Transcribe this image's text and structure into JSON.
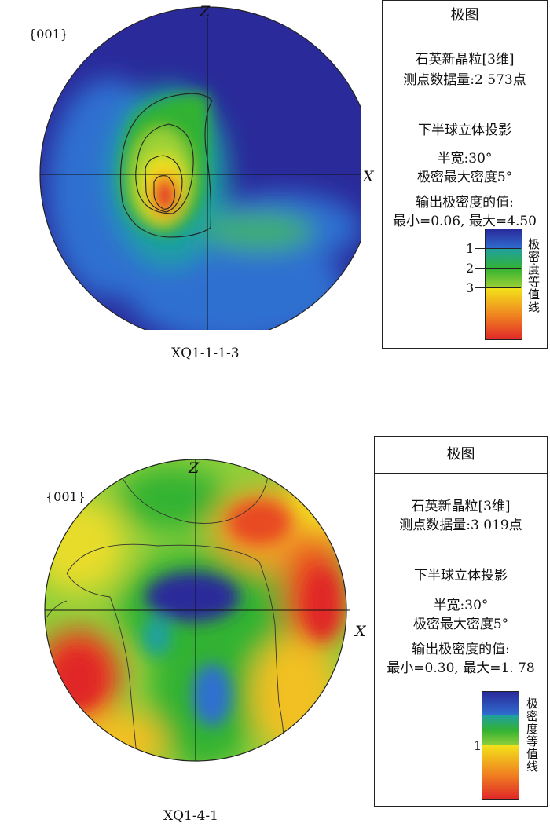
{
  "figures": [
    {
      "plane_label": "{001}",
      "axis_z": "Z",
      "axis_x": "X",
      "sample_label": "XQ1-1-1-3",
      "panel": {
        "title": "极图",
        "mineral": "石英新晶粒[3维]",
        "points": "测点数据量:2 573点",
        "projection": "下半球立体投影",
        "half_width": "半宽:30°",
        "pole_density": "极密最大密度5°",
        "output": "输出极密度的值:",
        "minmax": "最小=0.06, 最大=4.50",
        "colorbar_title": "极密度等值线",
        "colorbar_ticks": [
          "1",
          "2",
          "3"
        ]
      }
    },
    {
      "plane_label": "{001}",
      "axis_z": "Z",
      "axis_x": "X",
      "sample_label": "XQ1-4-1",
      "panel": {
        "title": "极图",
        "mineral": "石英新晶粒[3维]",
        "points": "测点数据量:3 019点",
        "projection": "下半球立体投影",
        "half_width": "半宽:30°",
        "pole_density": "极密最大密度5°",
        "output": "输出极密度的值:",
        "minmax": "最小=0.30, 最大=1. 78",
        "colorbar_title": "极密度等值线",
        "colorbar_ticks": [
          "1"
        ]
      }
    }
  ],
  "colors": {
    "blue": "#2a2a9a",
    "mid_blue": "#2f6fd0",
    "teal": "#1fa0a0",
    "green": "#33b233",
    "yellow": "#f2e21a",
    "orange": "#f08020",
    "red": "#e02828"
  }
}
